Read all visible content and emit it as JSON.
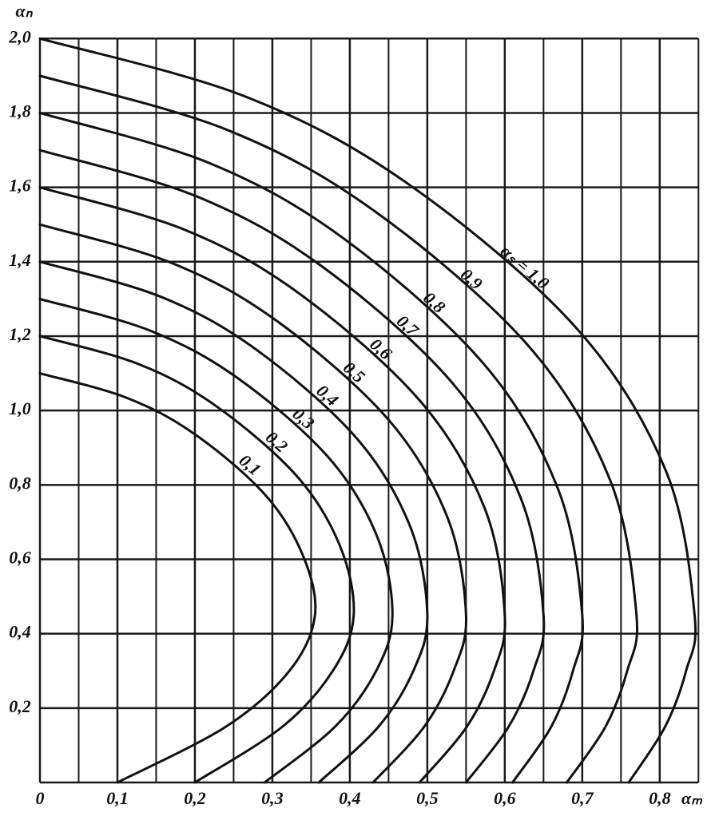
{
  "chart_data": {
    "type": "line",
    "x_label": "αₘ",
    "y_label": "αₙ",
    "xlim": [
      0,
      0.86
    ],
    "ylim": [
      0,
      2.05
    ],
    "xticks": [
      {
        "value": 0,
        "label": "0"
      },
      {
        "value": 0.1,
        "label": "0,1"
      },
      {
        "value": 0.2,
        "label": "0,2"
      },
      {
        "value": 0.3,
        "label": "0,3"
      },
      {
        "value": 0.4,
        "label": "0,4"
      },
      {
        "value": 0.5,
        "label": "0,5"
      },
      {
        "value": 0.6,
        "label": "0,6"
      },
      {
        "value": 0.7,
        "label": "0,7"
      },
      {
        "value": 0.8,
        "label": "0,8"
      }
    ],
    "x_minor_ticks": [
      0.05,
      0.15,
      0.25,
      0.35,
      0.45,
      0.55,
      0.65,
      0.75,
      0.85
    ],
    "yticks": [
      {
        "value": 0.2,
        "label": "0,2"
      },
      {
        "value": 0.4,
        "label": "0,4"
      },
      {
        "value": 0.6,
        "label": "0,6"
      },
      {
        "value": 0.8,
        "label": "0,8"
      },
      {
        "value": 1.0,
        "label": "1,0"
      },
      {
        "value": 1.2,
        "label": "1,2"
      },
      {
        "value": 1.4,
        "label": "1,4"
      },
      {
        "value": 1.6,
        "label": "1,6"
      },
      {
        "value": 1.8,
        "label": "1,8"
      },
      {
        "value": 2.0,
        "label": "2,0"
      }
    ],
    "grid": true,
    "color": "#111111",
    "series": [
      {
        "name": "0,1",
        "x": [
          0.1,
          0.24,
          0.322,
          0.355,
          0.339,
          0.29,
          0.199,
          0.111,
          0
        ],
        "values": [
          0,
          0.15,
          0.3,
          0.45,
          0.6125,
          0.775,
          0.9375,
          1.035,
          1.1
        ]
      },
      {
        "name": "0,2",
        "x": [
          0.2,
          0.313,
          0.378,
          0.405,
          0.387,
          0.331,
          0.227,
          0.127,
          0
        ],
        "values": [
          0,
          0.15,
          0.3,
          0.45,
          0.6375,
          0.825,
          1.0125,
          1.125,
          1.2
        ]
      },
      {
        "name": "0,3",
        "x": [
          0.29,
          0.381,
          0.434,
          0.455,
          0.435,
          0.372,
          0.255,
          0.142,
          0
        ],
        "values": [
          0,
          0.15,
          0.3,
          0.45,
          0.6625,
          0.875,
          1.0875,
          1.215,
          1.3
        ]
      },
      {
        "name": "0,4",
        "x": [
          0.36,
          0.437,
          0.482,
          0.5,
          0.478,
          0.409,
          0.28,
          0.157,
          0
        ],
        "values": [
          0,
          0.15,
          0.3,
          0.45,
          0.6875,
          0.925,
          1.1625,
          1.305,
          1.4
        ]
      },
      {
        "name": "0,5",
        "x": [
          0.43,
          0.496,
          0.534,
          0.55,
          0.526,
          0.45,
          0.308,
          0.172,
          0
        ],
        "values": [
          0,
          0.15,
          0.3,
          0.45,
          0.7125,
          0.975,
          1.2375,
          1.395,
          1.5
        ]
      },
      {
        "name": "0,6",
        "x": [
          0.49,
          0.551,
          0.586,
          0.6,
          0.574,
          0.491,
          0.336,
          0.188,
          0
        ],
        "values": [
          0,
          0.15,
          0.3,
          0.45,
          0.7375,
          1.025,
          1.3125,
          1.485,
          1.6
        ]
      },
      {
        "name": "0,7",
        "x": [
          0.55,
          0.605,
          0.637,
          0.65,
          0.621,
          0.532,
          0.364,
          0.203,
          0
        ],
        "values": [
          0,
          0.15,
          0.3,
          0.45,
          0.7625,
          1.075,
          1.3875,
          1.575,
          1.7
        ]
      },
      {
        "name": "0,8",
        "x": [
          0.61,
          0.66,
          0.688,
          0.7,
          0.669,
          0.573,
          0.392,
          0.219,
          0
        ],
        "values": [
          0,
          0.15,
          0.3,
          0.45,
          0.7875,
          1.125,
          1.4625,
          1.665,
          1.8
        ]
      },
      {
        "name": "0,9",
        "x": [
          0.68,
          0.73,
          0.758,
          0.77,
          0.736,
          0.63,
          0.431,
          0.241,
          0
        ],
        "values": [
          0,
          0.15,
          0.3,
          0.45,
          0.8125,
          1.175,
          1.5375,
          1.755,
          1.9
        ]
      },
      {
        "name": "αₛ = 1,0",
        "x": [
          0.76,
          0.807,
          0.834,
          0.845,
          0.808,
          0.691,
          0.473,
          0.264,
          0
        ],
        "values": [
          0,
          0.15,
          0.3,
          0.45,
          0.8375,
          1.225,
          1.6125,
          1.845,
          2.0
        ]
      }
    ]
  }
}
